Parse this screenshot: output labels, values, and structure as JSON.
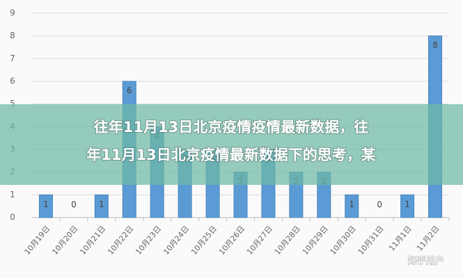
{
  "chart_data": {
    "type": "bar",
    "categories": [
      "10月19日",
      "10月20日",
      "10月21日",
      "10月22日",
      "10月23日",
      "10月24日",
      "10月25日",
      "10月26日",
      "10月27日",
      "10月28日",
      "10月29日",
      "10月30日",
      "10月31日",
      "11月1日",
      "11月2日"
    ],
    "values": [
      1,
      0,
      1,
      6,
      4,
      3,
      3,
      2,
      3,
      2,
      2,
      1,
      0,
      1,
      8
    ],
    "color": "#5b9bd5",
    "ylim": [
      0,
      9
    ],
    "yticks": [
      0,
      1,
      2,
      3,
      4,
      5,
      6,
      7,
      8,
      9
    ],
    "grid": true
  },
  "banner": [
    "往年11月13日北京疫情疫情最新数据，往",
    "年11月13日北京疫情最新数据下的思考，某"
  ],
  "watermark": "知乎用户"
}
